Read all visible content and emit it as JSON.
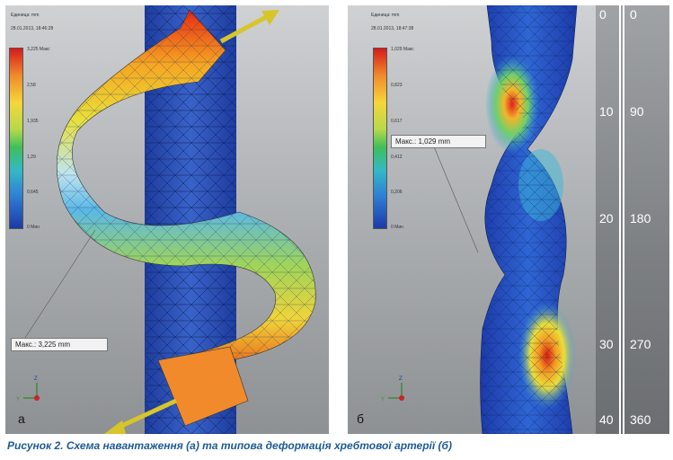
{
  "panel_a": {
    "units_label": "Единица: mm",
    "date_label": "28.01.2013, 18:46:28",
    "legend_ticks": [
      "3,225 Макс",
      "2,58",
      "1,935",
      "1,29",
      "0,645",
      "0 Мин"
    ],
    "max_label": "Макс.: 3,225 mm",
    "letter": "а"
  },
  "panel_b": {
    "units_label": "Единица: mm",
    "date_label": "28.01.2013, 18:47:38",
    "legend_ticks": [
      "1,029 Макс",
      "0,823",
      "0,617",
      "0,412",
      "0,206",
      "0 Мин"
    ],
    "max_label": "Макс.: 1,029 mm",
    "letter": "б"
  },
  "scale": {
    "left": [
      "0",
      "10",
      "20",
      "30",
      "40"
    ],
    "right": [
      "0",
      "90",
      "180",
      "270",
      "360"
    ]
  },
  "caption": "Рисунок 2. Схема навантаження (а) та типова деформація хребтової артерії (б)",
  "colors": {
    "caption": "#1e5a96",
    "artery": "#2c4fb0",
    "arrow": "#d8c52a"
  }
}
